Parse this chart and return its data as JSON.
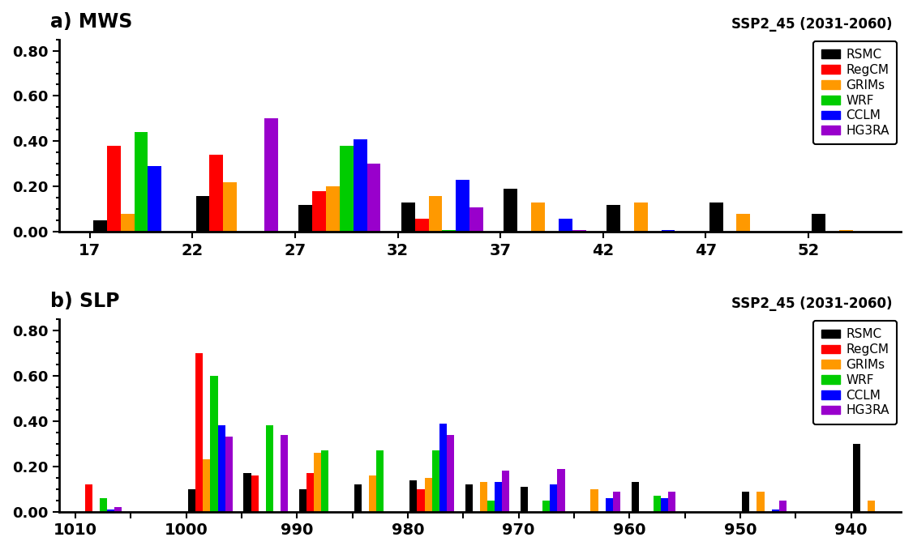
{
  "panel_a": {
    "title": "a) MWS",
    "subtitle": "SSP2_45 (2031-2060)",
    "xlim_ticks": [
      17,
      22,
      27,
      32,
      37,
      42,
      47,
      52
    ],
    "ylim": [
      0,
      0.85
    ],
    "yticks": [
      0.0,
      0.2,
      0.4,
      0.6,
      0.8
    ],
    "series": {
      "RSMC": [
        0.05,
        0.16,
        0.12,
        0.13,
        0.19,
        0.12,
        0.13,
        0.08
      ],
      "RegCM": [
        0.38,
        0.34,
        0.18,
        0.06,
        0.0,
        0.0,
        0.0,
        0.0
      ],
      "GRIMs": [
        0.08,
        0.22,
        0.2,
        0.16,
        0.13,
        0.13,
        0.08,
        0.01
      ],
      "WRF": [
        0.44,
        0.0,
        0.38,
        0.01,
        0.0,
        0.0,
        0.0,
        0.0
      ],
      "CCLM": [
        0.29,
        0.0,
        0.41,
        0.23,
        0.06,
        0.01,
        0.0,
        0.0
      ],
      "HG3RA": [
        0.0,
        0.5,
        0.3,
        0.11,
        0.01,
        0.0,
        0.0,
        0.0
      ]
    },
    "colors": {
      "RSMC": "#000000",
      "RegCM": "#ff0000",
      "GRIMs": "#ff9900",
      "WRF": "#00cc00",
      "CCLM": "#0000ff",
      "HG3RA": "#9900cc"
    }
  },
  "panel_b": {
    "title": "b) SLP",
    "subtitle": "SSP2_45 (2031-2060)",
    "xlim_ticks": [
      1010,
      1005,
      1000,
      995,
      990,
      985,
      980,
      975,
      970,
      965,
      960,
      955,
      950,
      945,
      940
    ],
    "x_label_indices": [
      0,
      2,
      4,
      6,
      8,
      10,
      12,
      14
    ],
    "ylim": [
      0,
      0.85
    ],
    "yticks": [
      0.0,
      0.2,
      0.4,
      0.6,
      0.8
    ],
    "series": {
      "RSMC": [
        0.0,
        0.0,
        0.1,
        0.17,
        0.1,
        0.12,
        0.14,
        0.12,
        0.11,
        0.0,
        0.13,
        0.0,
        0.09,
        0.0,
        0.3
      ],
      "RegCM": [
        0.12,
        0.0,
        0.7,
        0.16,
        0.17,
        0.0,
        0.1,
        0.0,
        0.0,
        0.0,
        0.0,
        0.0,
        0.0,
        0.0,
        0.0
      ],
      "GRIMs": [
        0.0,
        0.0,
        0.23,
        0.0,
        0.26,
        0.16,
        0.15,
        0.13,
        0.0,
        0.1,
        0.0,
        0.0,
        0.09,
        0.0,
        0.05
      ],
      "WRF": [
        0.06,
        0.0,
        0.6,
        0.38,
        0.27,
        0.27,
        0.27,
        0.05,
        0.05,
        0.0,
        0.07,
        0.0,
        0.0,
        0.0,
        0.0
      ],
      "CCLM": [
        0.01,
        0.0,
        0.38,
        0.0,
        0.0,
        0.0,
        0.39,
        0.13,
        0.12,
        0.06,
        0.06,
        0.0,
        0.01,
        0.0,
        0.0
      ],
      "HG3RA": [
        0.02,
        0.0,
        0.33,
        0.34,
        0.0,
        0.0,
        0.34,
        0.18,
        0.19,
        0.09,
        0.09,
        0.0,
        0.05,
        0.0,
        0.0
      ]
    },
    "colors": {
      "RSMC": "#000000",
      "RegCM": "#ff0000",
      "GRIMs": "#ff9900",
      "WRF": "#00cc00",
      "CCLM": "#0000ff",
      "HG3RA": "#9900cc"
    }
  },
  "legend_labels": [
    "RSMC",
    "RegCM",
    "GRIMs",
    "WRF",
    "CCLM",
    "HG3RA"
  ],
  "legend_colors": [
    "#000000",
    "#ff0000",
    "#ff9900",
    "#00cc00",
    "#0000ff",
    "#9900cc"
  ]
}
